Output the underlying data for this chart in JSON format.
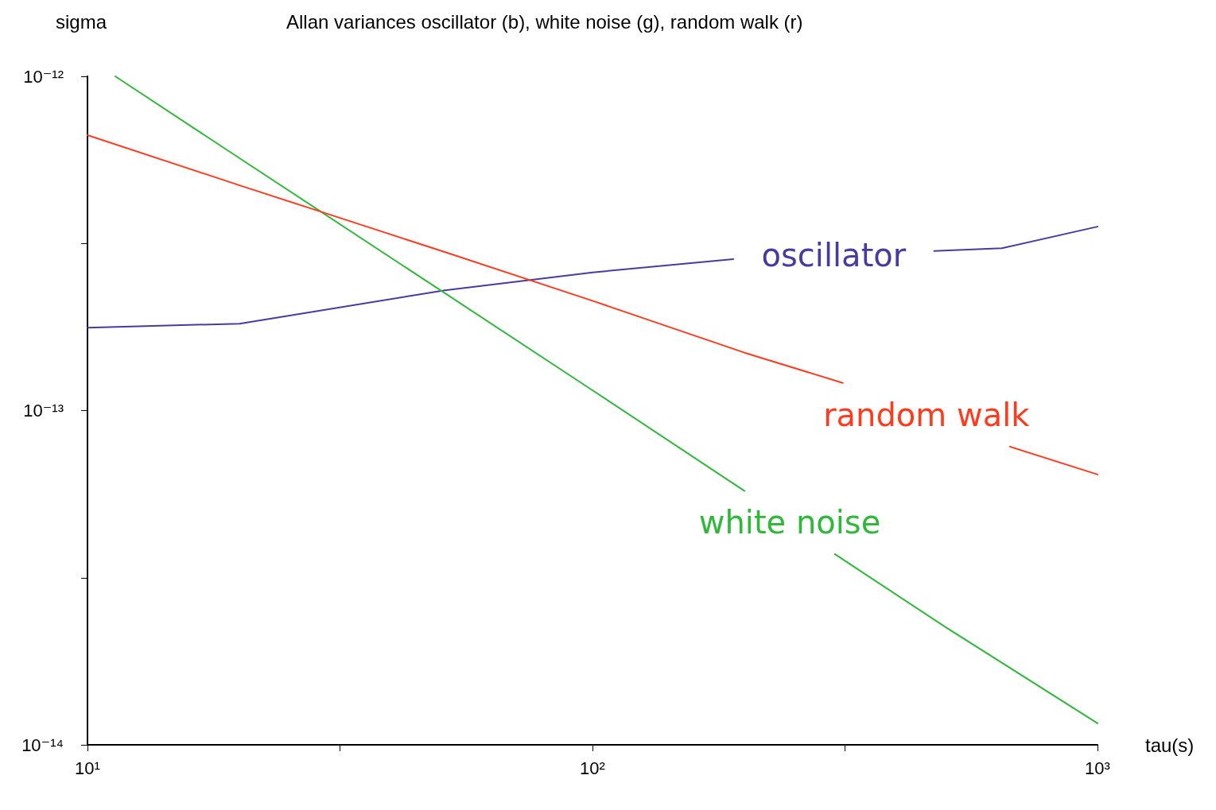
{
  "chart_data": {
    "type": "line",
    "title": "Allan variances oscillator (b), white noise (g), random walk (r)",
    "xlabel": "tau(s)",
    "ylabel": "sigma",
    "log": "xy",
    "grid": false,
    "legend": false,
    "marker": "none",
    "line_style": "solid",
    "xlim": [
      10,
      1000
    ],
    "xticks": [
      {
        "value": 10,
        "label": "10¹"
      },
      {
        "value": 31.62,
        "label": null
      },
      {
        "value": 100,
        "label": "10²"
      },
      {
        "value": 316.2,
        "label": null
      },
      {
        "value": 1000,
        "label": "10³"
      }
    ],
    "ylim": [
      1e-14,
      1e-12
    ],
    "yticks": [
      {
        "value": 1e-14,
        "label": "10⁻¹⁴"
      },
      {
        "value": 3.162e-14,
        "label": null
      },
      {
        "value": 1e-13,
        "label": "10⁻¹³"
      },
      {
        "value": 3.162e-13,
        "label": null
      },
      {
        "value": 1e-12,
        "label": "10⁻¹²"
      }
    ],
    "series": [
      {
        "name": "oscillator",
        "color": "#4a3aa0",
        "x": [
          10,
          20,
          51,
          100,
          190,
          300,
          475,
          647,
          1000
        ],
        "values": [
          1.77e-13,
          1.82e-13,
          2.29e-13,
          2.59e-13,
          2.84e-13,
          null,
          3e-13,
          3.06e-13,
          3.55e-13
        ]
      },
      {
        "name": "white noise",
        "color": "#2fb83a",
        "x": [
          11.35,
          20,
          50,
          100,
          200,
          250,
          302,
          500,
          1000
        ],
        "values": [
          1e-12,
          5.69e-13,
          2.29e-13,
          1.15e-13,
          5.75e-14,
          null,
          3.72e-14,
          2.25e-14,
          1.16e-14
        ]
      },
      {
        "name": "random walk",
        "color": "#ff3b1f",
        "x": [
          10,
          20,
          28.6,
          50,
          100,
          200,
          313,
          460,
          671,
          1000
        ],
        "values": [
          6.67e-13,
          4.72e-13,
          3.96e-13,
          3.01e-13,
          2.13e-13,
          1.49e-13,
          1.21e-13,
          null,
          7.8e-14,
          6.44e-14
        ]
      }
    ]
  }
}
